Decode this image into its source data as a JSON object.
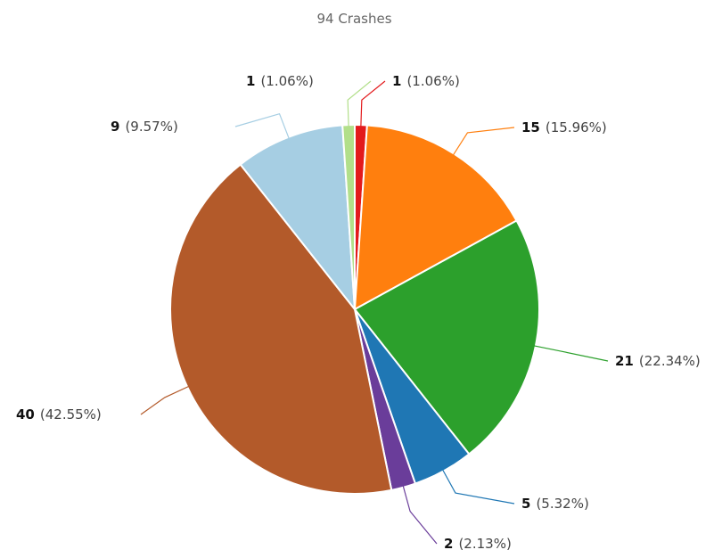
{
  "chart_data": {
    "type": "pie",
    "title": "94 Crashes",
    "total": 94,
    "start_angle_deg": 0,
    "slices": [
      {
        "value": 1,
        "percent_label": "(1.06%)",
        "color": "#e31a1c",
        "label_side": "right"
      },
      {
        "value": 15,
        "percent_label": "(15.96%)",
        "color": "#ff7f0e",
        "label_side": "right"
      },
      {
        "value": 21,
        "percent_label": "(22.34%)",
        "color": "#2ca02c",
        "label_side": "right"
      },
      {
        "value": 5,
        "percent_label": "(5.32%)",
        "color": "#1f77b4",
        "label_side": "right"
      },
      {
        "value": 2,
        "percent_label": "(2.13%)",
        "color": "#6a3d9a",
        "label_side": "right"
      },
      {
        "value": 40,
        "percent_label": "(42.55%)",
        "color": "#b35a2a",
        "label_side": "left"
      },
      {
        "value": 9,
        "percent_label": "(9.57%)",
        "color": "#a6cee3",
        "label_side": "left"
      },
      {
        "value": 1,
        "percent_label": "(1.06%)",
        "color": "#b2df8a",
        "label_side": "left"
      }
    ]
  }
}
